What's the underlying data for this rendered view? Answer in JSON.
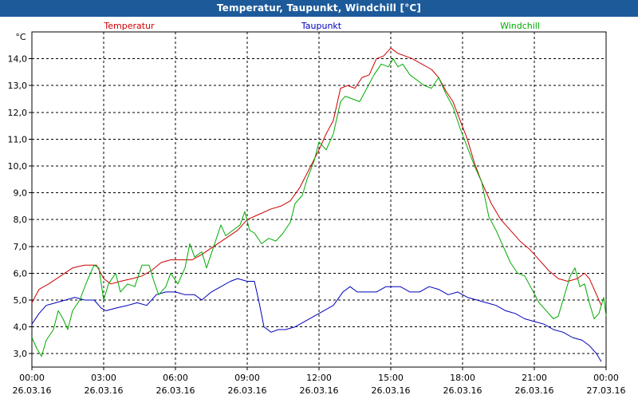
{
  "window": {
    "title": "Temperatur, Taupunkt, Windchill [°C]"
  },
  "chart_data": {
    "type": "line",
    "title": "Temperatur, Taupunkt, Windchill [°C]",
    "ylabel": "°C",
    "ylim": [
      2.5,
      15.0
    ],
    "y_ticks": [
      "3,0",
      "4,0",
      "5,0",
      "6,0",
      "7,0",
      "8,0",
      "9,0",
      "10,0",
      "11,0",
      "12,0",
      "13,0",
      "14,0"
    ],
    "xlim_hours": [
      0,
      24
    ],
    "x_ticks": [
      {
        "time": "00:00",
        "date": "26.03.16"
      },
      {
        "time": "03:00",
        "date": "26.03.16"
      },
      {
        "time": "06:00",
        "date": "26.03.16"
      },
      {
        "time": "09:00",
        "date": "26.03.16"
      },
      {
        "time": "12:00",
        "date": "26.03.16"
      },
      {
        "time": "15:00",
        "date": "26.03.16"
      },
      {
        "time": "18:00",
        "date": "26.03.16"
      },
      {
        "time": "21:00",
        "date": "26.03.16"
      },
      {
        "time": "00:00",
        "date": "27.03.16"
      }
    ],
    "grid": true,
    "legend_placement": "top",
    "series": [
      {
        "name": "Temperatur",
        "color": "#cc0000",
        "points": [
          [
            0,
            4.9
          ],
          [
            0.3,
            5.4
          ],
          [
            0.7,
            5.6
          ],
          [
            1.2,
            5.9
          ],
          [
            1.7,
            6.2
          ],
          [
            2.2,
            6.3
          ],
          [
            2.7,
            6.3
          ],
          [
            3.0,
            5.8
          ],
          [
            3.3,
            5.6
          ],
          [
            3.7,
            5.7
          ],
          [
            4.2,
            5.8
          ],
          [
            4.6,
            5.9
          ],
          [
            5.0,
            6.1
          ],
          [
            5.4,
            6.4
          ],
          [
            5.8,
            6.5
          ],
          [
            6.3,
            6.5
          ],
          [
            6.7,
            6.5
          ],
          [
            7.1,
            6.7
          ],
          [
            7.6,
            7.0
          ],
          [
            8.1,
            7.3
          ],
          [
            8.6,
            7.6
          ],
          [
            9.0,
            8.0
          ],
          [
            9.5,
            8.2
          ],
          [
            10.0,
            8.4
          ],
          [
            10.4,
            8.5
          ],
          [
            10.8,
            8.7
          ],
          [
            11.2,
            9.2
          ],
          [
            11.6,
            9.9
          ],
          [
            12.0,
            10.6
          ],
          [
            12.3,
            11.2
          ],
          [
            12.6,
            11.7
          ],
          [
            12.9,
            12.9
          ],
          [
            13.2,
            13.0
          ],
          [
            13.5,
            12.9
          ],
          [
            13.8,
            13.3
          ],
          [
            14.1,
            13.4
          ],
          [
            14.4,
            14.0
          ],
          [
            14.7,
            14.1
          ],
          [
            15.0,
            14.4
          ],
          [
            15.3,
            14.2
          ],
          [
            15.6,
            14.1
          ],
          [
            15.9,
            14.0
          ],
          [
            16.3,
            13.8
          ],
          [
            16.7,
            13.6
          ],
          [
            17.0,
            13.3
          ],
          [
            17.3,
            12.8
          ],
          [
            17.6,
            12.4
          ],
          [
            17.9,
            11.7
          ],
          [
            18.2,
            11.0
          ],
          [
            18.5,
            10.1
          ],
          [
            18.8,
            9.4
          ],
          [
            19.2,
            8.6
          ],
          [
            19.6,
            8.0
          ],
          [
            20.0,
            7.6
          ],
          [
            20.4,
            7.2
          ],
          [
            20.8,
            6.9
          ],
          [
            21.2,
            6.5
          ],
          [
            21.6,
            6.1
          ],
          [
            22.0,
            5.8
          ],
          [
            22.4,
            5.7
          ],
          [
            22.8,
            5.8
          ],
          [
            23.1,
            6.0
          ],
          [
            23.3,
            5.8
          ],
          [
            23.6,
            5.2
          ],
          [
            23.8,
            4.8
          ]
        ]
      },
      {
        "name": "Taupunkt",
        "color": "#0000bb",
        "points": [
          [
            0,
            4.1
          ],
          [
            0.3,
            4.5
          ],
          [
            0.6,
            4.8
          ],
          [
            1.0,
            4.9
          ],
          [
            1.4,
            5.0
          ],
          [
            1.8,
            5.1
          ],
          [
            2.2,
            5.0
          ],
          [
            2.6,
            5.0
          ],
          [
            2.9,
            4.7
          ],
          [
            3.1,
            4.6
          ],
          [
            3.5,
            4.7
          ],
          [
            4.0,
            4.8
          ],
          [
            4.4,
            4.9
          ],
          [
            4.8,
            4.8
          ],
          [
            5.2,
            5.2
          ],
          [
            5.6,
            5.3
          ],
          [
            6.0,
            5.3
          ],
          [
            6.4,
            5.2
          ],
          [
            6.8,
            5.2
          ],
          [
            7.1,
            5.0
          ],
          [
            7.5,
            5.3
          ],
          [
            7.9,
            5.5
          ],
          [
            8.3,
            5.7
          ],
          [
            8.6,
            5.8
          ],
          [
            9.0,
            5.7
          ],
          [
            9.3,
            5.7
          ],
          [
            9.5,
            4.9
          ],
          [
            9.7,
            4.0
          ],
          [
            10.0,
            3.8
          ],
          [
            10.3,
            3.9
          ],
          [
            10.6,
            3.9
          ],
          [
            11.0,
            4.0
          ],
          [
            11.4,
            4.2
          ],
          [
            11.8,
            4.4
          ],
          [
            12.2,
            4.6
          ],
          [
            12.6,
            4.8
          ],
          [
            13.0,
            5.3
          ],
          [
            13.3,
            5.5
          ],
          [
            13.6,
            5.3
          ],
          [
            14.0,
            5.3
          ],
          [
            14.4,
            5.3
          ],
          [
            14.8,
            5.5
          ],
          [
            15.1,
            5.5
          ],
          [
            15.4,
            5.5
          ],
          [
            15.8,
            5.3
          ],
          [
            16.2,
            5.3
          ],
          [
            16.6,
            5.5
          ],
          [
            17.0,
            5.4
          ],
          [
            17.4,
            5.2
          ],
          [
            17.8,
            5.3
          ],
          [
            18.2,
            5.1
          ],
          [
            18.6,
            5.0
          ],
          [
            19.0,
            4.9
          ],
          [
            19.4,
            4.8
          ],
          [
            19.8,
            4.6
          ],
          [
            20.2,
            4.5
          ],
          [
            20.6,
            4.3
          ],
          [
            21.0,
            4.2
          ],
          [
            21.4,
            4.1
          ],
          [
            21.8,
            3.9
          ],
          [
            22.2,
            3.8
          ],
          [
            22.6,
            3.6
          ],
          [
            23.0,
            3.5
          ],
          [
            23.3,
            3.3
          ],
          [
            23.6,
            3.0
          ],
          [
            23.8,
            2.7
          ]
        ]
      },
      {
        "name": "Windchill",
        "color": "#00aa00",
        "points": [
          [
            0,
            3.6
          ],
          [
            0.2,
            3.2
          ],
          [
            0.4,
            2.9
          ],
          [
            0.6,
            3.5
          ],
          [
            0.9,
            3.9
          ],
          [
            1.1,
            4.6
          ],
          [
            1.3,
            4.3
          ],
          [
            1.5,
            3.9
          ],
          [
            1.7,
            4.6
          ],
          [
            2.0,
            5.0
          ],
          [
            2.3,
            5.7
          ],
          [
            2.6,
            6.3
          ],
          [
            2.8,
            6.2
          ],
          [
            3.0,
            5.0
          ],
          [
            3.2,
            5.6
          ],
          [
            3.5,
            6.0
          ],
          [
            3.7,
            5.3
          ],
          [
            4.0,
            5.6
          ],
          [
            4.3,
            5.5
          ],
          [
            4.6,
            6.3
          ],
          [
            4.9,
            6.3
          ],
          [
            5.1,
            5.7
          ],
          [
            5.3,
            5.2
          ],
          [
            5.6,
            5.5
          ],
          [
            5.8,
            6.0
          ],
          [
            6.1,
            5.6
          ],
          [
            6.4,
            6.2
          ],
          [
            6.6,
            7.1
          ],
          [
            6.8,
            6.6
          ],
          [
            7.1,
            6.8
          ],
          [
            7.3,
            6.2
          ],
          [
            7.6,
            7.0
          ],
          [
            7.9,
            7.8
          ],
          [
            8.1,
            7.4
          ],
          [
            8.4,
            7.6
          ],
          [
            8.7,
            7.8
          ],
          [
            8.9,
            8.3
          ],
          [
            9.1,
            7.6
          ],
          [
            9.3,
            7.5
          ],
          [
            9.6,
            7.1
          ],
          [
            9.9,
            7.3
          ],
          [
            10.2,
            7.2
          ],
          [
            10.5,
            7.5
          ],
          [
            10.8,
            7.9
          ],
          [
            11.0,
            8.6
          ],
          [
            11.3,
            8.9
          ],
          [
            11.5,
            9.5
          ],
          [
            11.8,
            10.2
          ],
          [
            12.0,
            10.9
          ],
          [
            12.3,
            10.6
          ],
          [
            12.6,
            11.2
          ],
          [
            12.9,
            12.4
          ],
          [
            13.1,
            12.6
          ],
          [
            13.4,
            12.5
          ],
          [
            13.7,
            12.4
          ],
          [
            14.0,
            12.9
          ],
          [
            14.3,
            13.4
          ],
          [
            14.6,
            13.8
          ],
          [
            14.9,
            13.7
          ],
          [
            15.1,
            14.0
          ],
          [
            15.3,
            13.7
          ],
          [
            15.5,
            13.8
          ],
          [
            15.8,
            13.4
          ],
          [
            16.1,
            13.2
          ],
          [
            16.4,
            13.0
          ],
          [
            16.7,
            12.9
          ],
          [
            17.0,
            13.3
          ],
          [
            17.3,
            12.7
          ],
          [
            17.6,
            12.2
          ],
          [
            17.9,
            11.4
          ],
          [
            18.2,
            10.7
          ],
          [
            18.5,
            10.0
          ],
          [
            18.8,
            9.4
          ],
          [
            19.1,
            8.1
          ],
          [
            19.4,
            7.6
          ],
          [
            19.7,
            7.0
          ],
          [
            20.0,
            6.4
          ],
          [
            20.3,
            6.0
          ],
          [
            20.6,
            5.9
          ],
          [
            20.9,
            5.4
          ],
          [
            21.2,
            4.9
          ],
          [
            21.5,
            4.6
          ],
          [
            21.8,
            4.3
          ],
          [
            22.0,
            4.4
          ],
          [
            22.3,
            5.3
          ],
          [
            22.5,
            5.9
          ],
          [
            22.7,
            6.2
          ],
          [
            22.9,
            5.5
          ],
          [
            23.1,
            5.6
          ],
          [
            23.3,
            4.9
          ],
          [
            23.5,
            4.3
          ],
          [
            23.7,
            4.5
          ],
          [
            23.9,
            5.1
          ],
          [
            24.0,
            4.4
          ]
        ]
      }
    ]
  }
}
